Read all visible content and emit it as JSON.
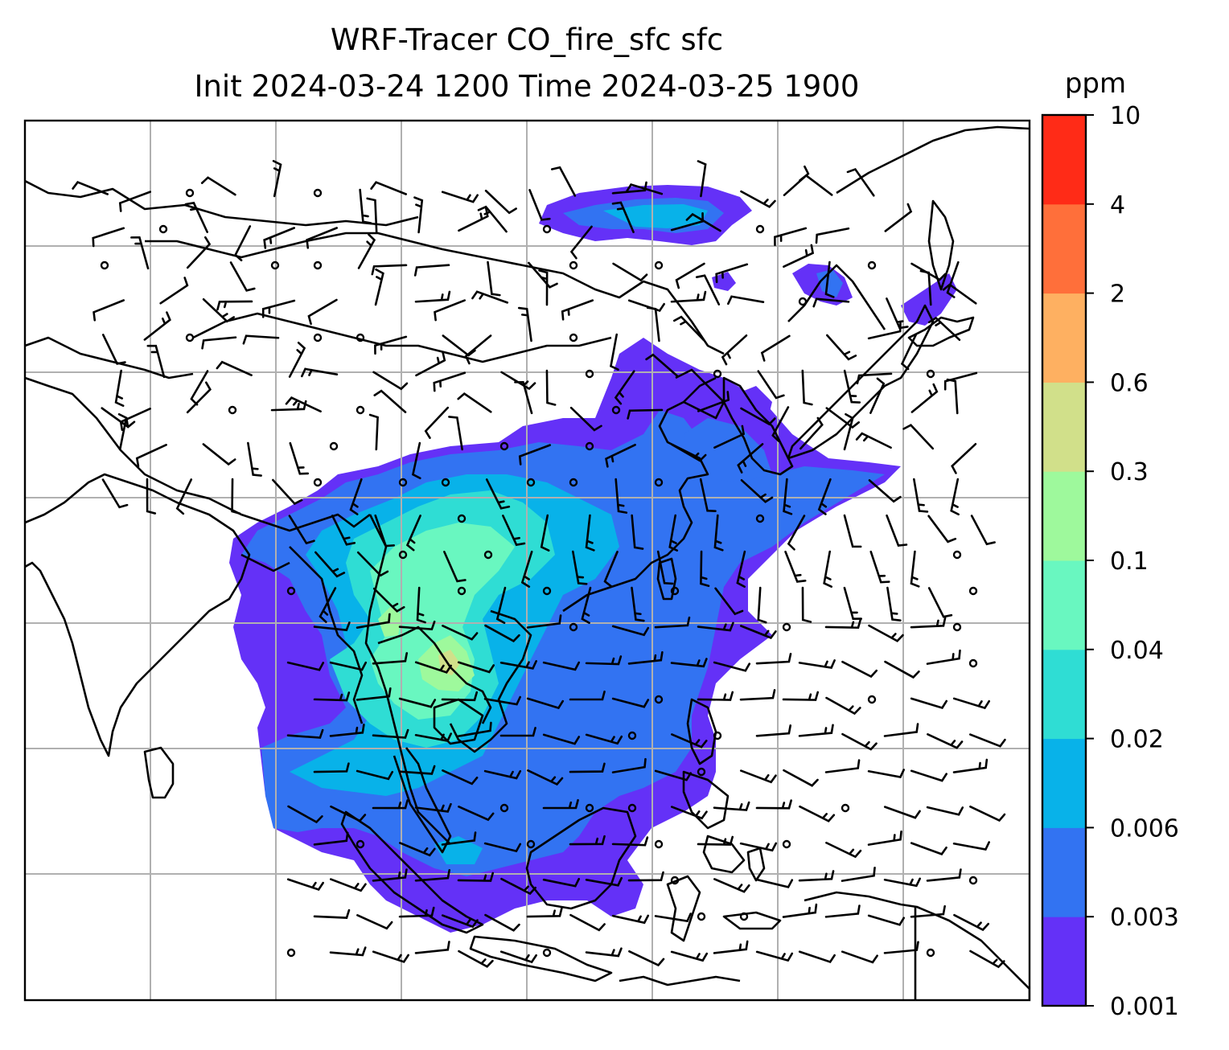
{
  "title": {
    "line1": "WRF-Tracer CO_fire_sfc sfc",
    "line2": "Init 2024-03-24 1200 Time 2024-03-25 1900"
  },
  "colorbar": {
    "unit": "ppm",
    "levels": [
      "0.001",
      "0.003",
      "0.006",
      "0.02",
      "0.04",
      "0.1",
      "0.3",
      "0.6",
      "2",
      "4",
      "10"
    ],
    "colors": [
      "#6431f7",
      "#3273f2",
      "#08b2e9",
      "#2fddd4",
      "#69f7c0",
      "#9ef99c",
      "#d1e08a",
      "#feb061",
      "#ff6f3a",
      "#ff2b17"
    ]
  },
  "map": {
    "variable": "CO_fire_sfc",
    "gridlines": true,
    "coastline_color": "#000000",
    "gridline_color": "#b0b0b0",
    "wind_barbs": true
  }
}
